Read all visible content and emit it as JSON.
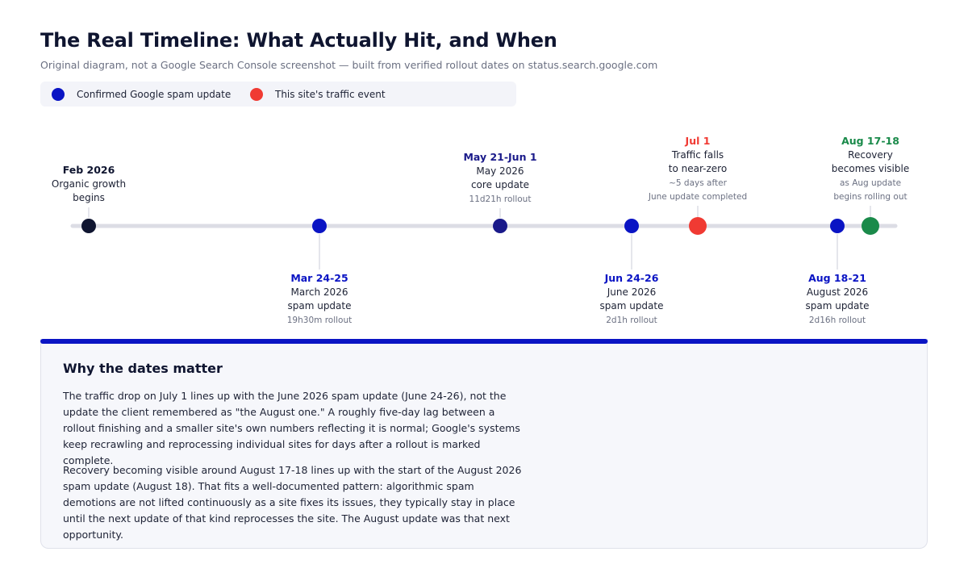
{
  "header": {
    "title": "The Real Timeline: What Actually Hit, and When",
    "subtitle": "Original diagram, not a Google Search Console screenshot — built from verified rollout dates on status.search.google.com"
  },
  "legend": {
    "items": [
      {
        "label": "Confirmed Google spam update",
        "color": "#0a14c4"
      },
      {
        "label": "This site's traffic event",
        "color": "#f03a33"
      }
    ]
  },
  "colors": {
    "spam": "#0a14c4",
    "core": "#1a1a8a",
    "traffic": "#f03a33",
    "recovery": "#1a8a4a",
    "start": "#0f1530",
    "axis": "#dcdde5",
    "muted": "#6b7082",
    "text": "#1d2235"
  },
  "timeline": {
    "events": [
      {
        "date": "Feb 2026",
        "lines": [
          "Organic growth",
          "begins"
        ],
        "note": [],
        "kind": "start"
      },
      {
        "date": "Mar 24-25",
        "lines": [
          "March 2026",
          "spam update"
        ],
        "note": [
          "19h30m rollout"
        ],
        "kind": "spam"
      },
      {
        "date": "May 21-Jun 1",
        "lines": [
          "May 2026",
          "core update"
        ],
        "note": [
          "11d21h rollout"
        ],
        "kind": "core"
      },
      {
        "date": "Jun 24-26",
        "lines": [
          "June 2026",
          "spam update"
        ],
        "note": [
          "2d1h rollout"
        ],
        "kind": "spam"
      },
      {
        "date": "Jul 1",
        "lines": [
          "Traffic falls",
          "to near-zero"
        ],
        "note": [
          "~5 days after",
          "June update completed"
        ],
        "kind": "traffic"
      },
      {
        "date": "Aug 18-21",
        "lines": [
          "August 2026",
          "spam update"
        ],
        "note": [
          "2d16h rollout"
        ],
        "kind": "spam"
      },
      {
        "date": "Aug 17-18",
        "lines": [
          "Recovery",
          "becomes visible"
        ],
        "note": [
          "as Aug update",
          "begins rolling out"
        ],
        "kind": "recovery"
      }
    ]
  },
  "notes": {
    "title": "Why the dates matter",
    "p1": "The traffic drop on July 1 lines up with the June 2026 spam update (June 24-26), not the update the client remembered as \"the August one.\" A roughly five-day lag between a rollout finishing and a smaller site's own numbers reflecting it is normal; Google's systems keep recrawling and reprocessing individual sites for days after a rollout is marked complete.",
    "p2": "Recovery becoming visible around August 17-18 lines up with the start of the August 2026 spam update (August 18). That fits a well-documented pattern: algorithmic spam demotions are not lifted continuously as a site fixes its issues, they typically stay in place until the next update of that kind reprocesses the site. The August update was that next opportunity."
  }
}
